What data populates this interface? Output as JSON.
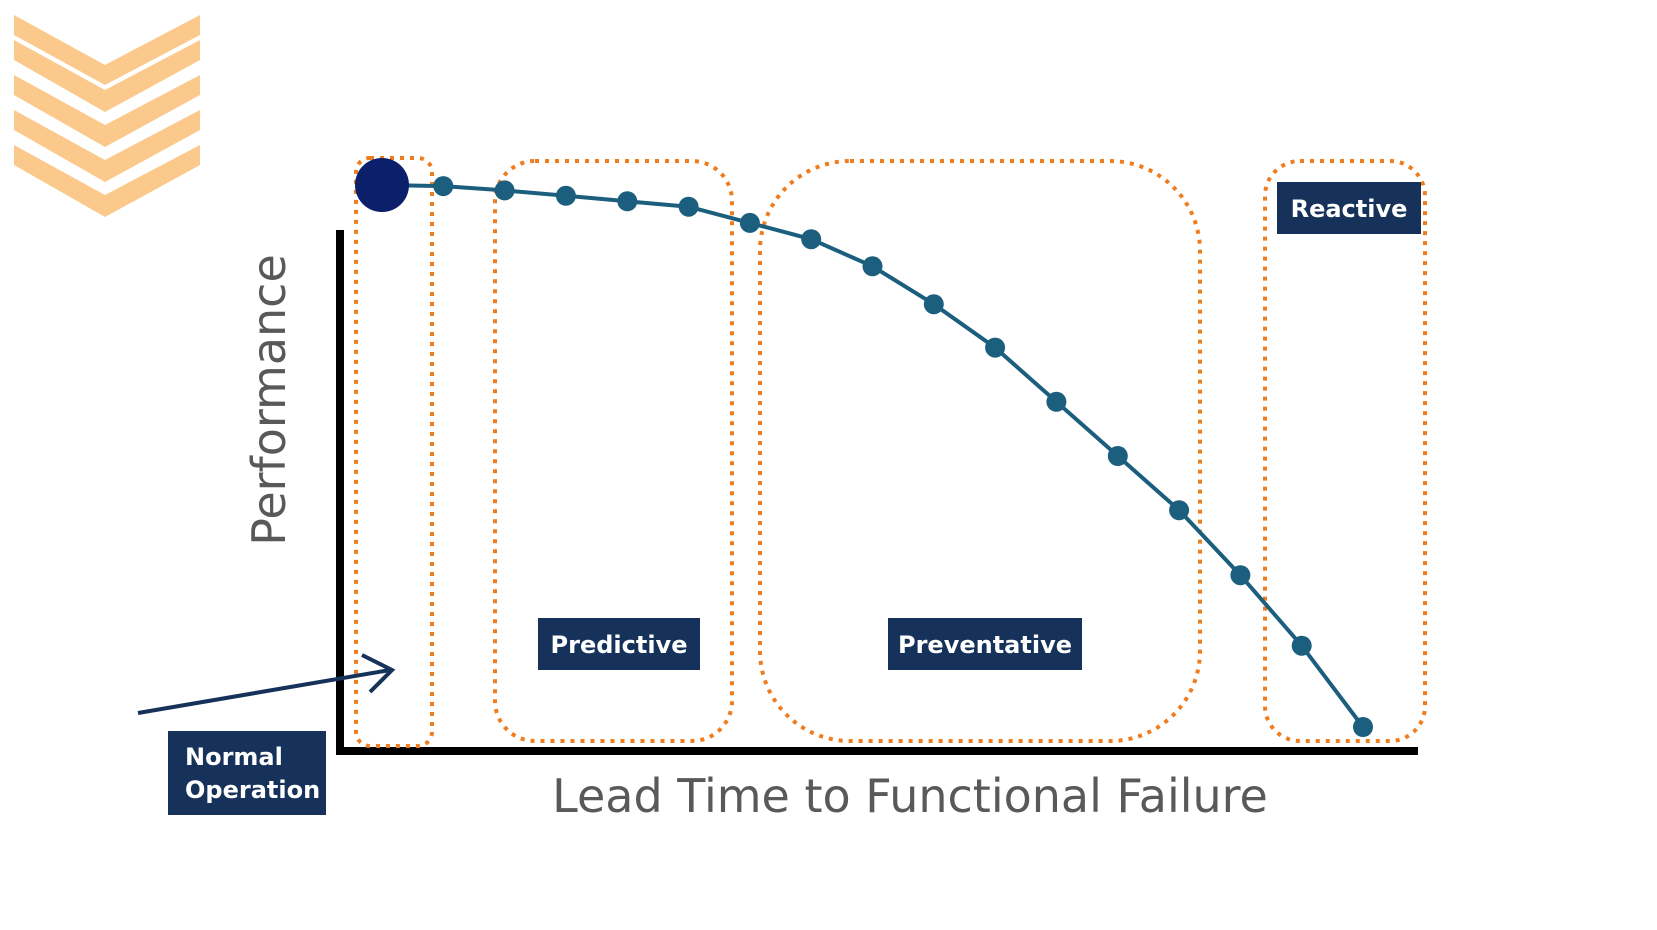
{
  "colors": {
    "zone_border": "#ef7d1f",
    "curve": "#1c5e7e",
    "marker": "#0b1f6b",
    "label_bg": "#17325a",
    "label_text": "#ffffff",
    "axis": "#000000",
    "axis_title": "#595959",
    "logo": "#fbc078"
  },
  "logo": {
    "icon": "chevron-stack-logo"
  },
  "chart_data": {
    "type": "line",
    "title": "",
    "xlabel": "Lead Time to Functional Failure",
    "ylabel": "Performance",
    "start_marker": {
      "label": "Normal Operation"
    },
    "zones": [
      {
        "name": "normal",
        "label": "Normal Operation"
      },
      {
        "name": "predictive",
        "label": "Predictive"
      },
      {
        "name": "preventative",
        "label": "Preventative"
      },
      {
        "name": "reactive",
        "label": "Reactive"
      }
    ],
    "series": [
      {
        "values": [
          100,
          99.8,
          99,
          98,
          97,
          96,
          93,
          90,
          85,
          78,
          70,
          60,
          50,
          40,
          28,
          15,
          0
        ]
      }
    ]
  }
}
